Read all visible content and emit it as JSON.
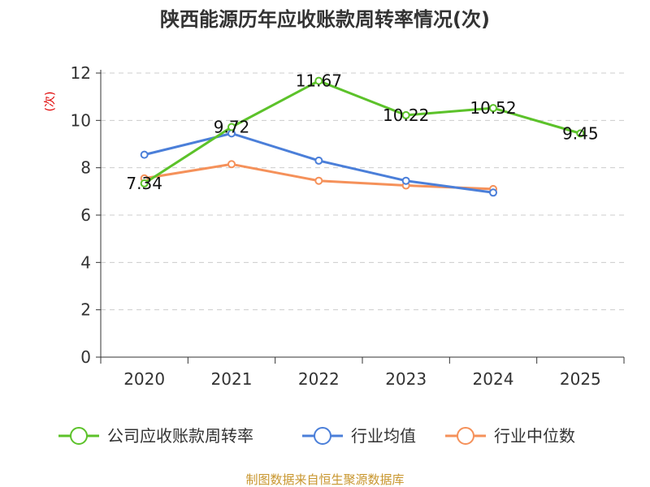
{
  "chart_data": {
    "type": "line",
    "title": "陕西能源历年应收账款周转率情况(次)",
    "ylabel": "(次)",
    "xlabel": "",
    "categories": [
      "2020",
      "2021",
      "2022",
      "2023",
      "2024",
      "2025"
    ],
    "ylim": [
      0,
      12
    ],
    "yticks": [
      0,
      2,
      4,
      6,
      8,
      10,
      12
    ],
    "grid": true,
    "legend_position": "bottom",
    "series": [
      {
        "name": "公司应收账款周转率",
        "color": "#5cc22a",
        "values": [
          7.34,
          9.72,
          11.67,
          10.22,
          10.52,
          9.45
        ],
        "labels": [
          "7.34",
          "9.72",
          "11.67",
          "10.22",
          "10.52",
          "9.45"
        ]
      },
      {
        "name": "行业均值",
        "color": "#4b7fd9",
        "values": [
          8.55,
          9.45,
          8.3,
          7.45,
          6.95,
          null
        ]
      },
      {
        "name": "行业中位数",
        "color": "#f5915a",
        "values": [
          7.55,
          8.15,
          7.45,
          7.25,
          7.1,
          null
        ]
      }
    ],
    "source": "制图数据来自恒生聚源数据库"
  }
}
